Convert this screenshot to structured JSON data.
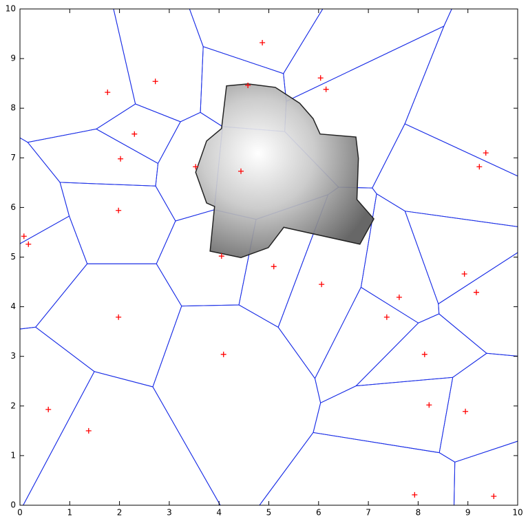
{
  "chart_data": {
    "type": "scatter",
    "x": [
      0.08,
      0.17,
      1.76,
      2.72,
      2.3,
      2.02,
      1.98,
      1.98,
      0.57,
      1.38,
      4.09,
      4.44,
      3.53,
      4.58,
      4.87,
      6.04,
      6.15,
      4.05,
      5.1,
      6.06,
      7.37,
      7.62,
      9.23,
      9.36,
      8.93,
      9.17,
      8.13,
      8.22,
      8.95,
      7.93,
      9.52
    ],
    "y": [
      5.42,
      5.26,
      8.32,
      8.54,
      7.48,
      6.98,
      5.94,
      3.79,
      1.93,
      1.5,
      3.04,
      6.73,
      6.82,
      8.46,
      9.32,
      8.61,
      8.38,
      5.02,
      4.81,
      4.45,
      3.79,
      4.19,
      6.82,
      7.1,
      4.66,
      4.29,
      3.04,
      2.02,
      1.89,
      0.21,
      0.18
    ],
    "color": "#ff0000",
    "edge_color": "#1a2ee6",
    "region": {
      "x": [
        4.15,
        4.58,
        5.13,
        5.62,
        5.89,
        6.03,
        6.75,
        6.8,
        6.77,
        7.11,
        6.83,
        5.3,
        4.99,
        4.44,
        3.82,
        3.91,
        3.75,
        3.53,
        3.75,
        4.05
      ],
      "y": [
        8.45,
        8.49,
        8.42,
        8.1,
        7.79,
        7.48,
        7.42,
        6.99,
        6.16,
        5.77,
        5.26,
        5.6,
        5.19,
        4.99,
        5.12,
        6.02,
        6.09,
        6.71,
        7.34,
        7.59
      ],
      "color": "#5a5a5a"
    },
    "xlim": [
      0,
      10
    ],
    "ylim": [
      0,
      10
    ],
    "xticks": [
      0,
      1,
      2,
      3,
      4,
      5,
      6,
      7,
      8,
      9,
      10
    ],
    "yticks": [
      0,
      1,
      2,
      3,
      4,
      5,
      6,
      7,
      8,
      9,
      10
    ]
  }
}
